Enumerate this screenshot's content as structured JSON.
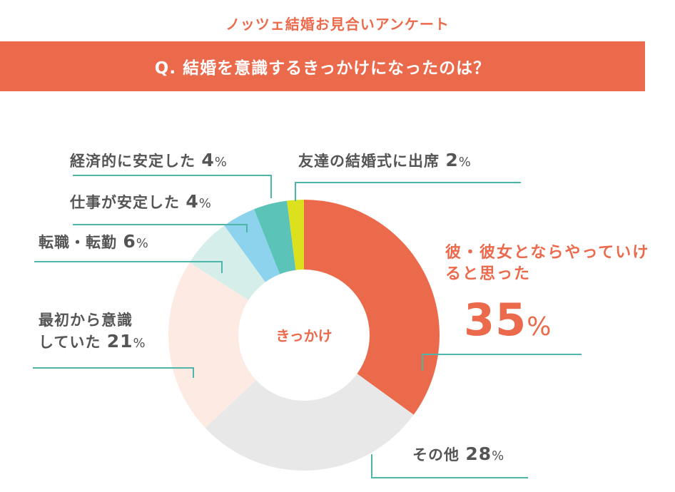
{
  "header": {
    "survey_title": "ノッツェ結婚お見合いアンケート",
    "question": "Q. 結婚を意識するきっかけになったのは？"
  },
  "colors": {
    "accent": "#EC6A4C",
    "question_bg": "#EC6A4C",
    "leader_line": "#4DB6A8",
    "text": "#555555"
  },
  "chart_data": {
    "type": "pie",
    "donut": true,
    "center_label": "きっかけ",
    "slices": [
      {
        "label": "彼・彼女とならやっていけると思った",
        "value": 35,
        "color": "#EC6A4C"
      },
      {
        "label": "その他",
        "value": 28,
        "color": "#E8E8E8"
      },
      {
        "label": "最初から意識していた",
        "value": 21,
        "color": "#FDEBE3"
      },
      {
        "label": "転職・転勤",
        "value": 6,
        "color": "#D6EEEA"
      },
      {
        "label": "仕事が安定した",
        "value": 4,
        "color": "#8DD3EE"
      },
      {
        "label": "経済的に安定した",
        "value": 4,
        "color": "#5CC3B8"
      },
      {
        "label": "友達の結婚式に出席",
        "value": 2,
        "color": "#DDE01C"
      }
    ]
  },
  "labels": {
    "main_line1": "彼・彼女とならやっていけると思った",
    "main_line2": "",
    "main_value": "35",
    "other_text": "その他",
    "other_value": "28",
    "initial_line1": "最初から意識",
    "initial_line2": "していた",
    "initial_value": "21",
    "job_change_text": "転職・転勤",
    "job_change_value": "6",
    "job_stable_text": "仕事が安定した",
    "job_stable_value": "4",
    "econ_stable_text": "経済的に安定した",
    "econ_stable_value": "4",
    "wedding_text": "友達の結婚式に出席",
    "wedding_value": "2",
    "percent_sign": "%"
  }
}
